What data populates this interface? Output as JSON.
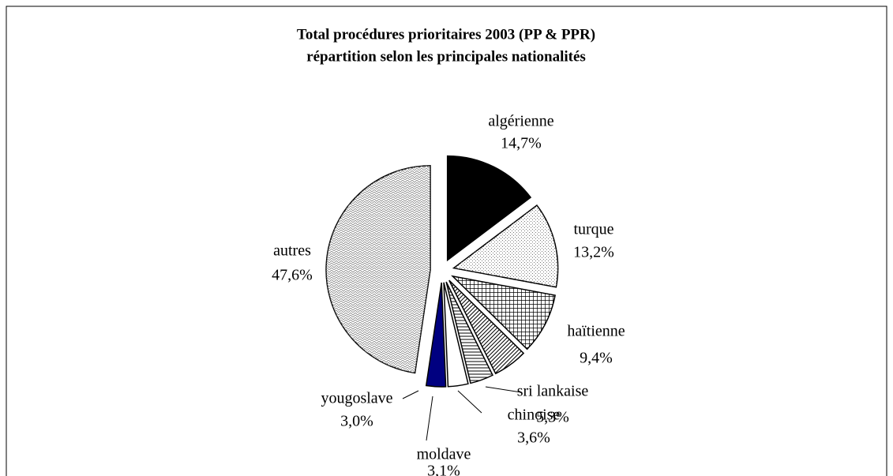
{
  "chart_data": {
    "type": "pie",
    "title": "Total procédures prioritaires 2003 (PP & PPR)",
    "subtitle": "répartition selon les principales nationalités",
    "categories": [
      "algérienne",
      "turque",
      "haïtienne",
      "sri lankaise",
      "chinoise",
      "moldave",
      "yougoslave",
      "autres"
    ],
    "values": [
      14.7,
      13.2,
      9.4,
      5.3,
      3.6,
      3.1,
      3.0,
      47.6
    ],
    "value_labels": [
      "14,7%",
      "13,2%",
      "9,4%",
      "5,3%",
      "3,6%",
      "3,1%",
      "3,0%",
      "47,6%"
    ],
    "colors": [
      "#000000",
      "#ffffff",
      "#ffffff",
      "#ffffff",
      "#ffffff",
      "#ffffff",
      "#000080",
      "#ffffff"
    ]
  }
}
